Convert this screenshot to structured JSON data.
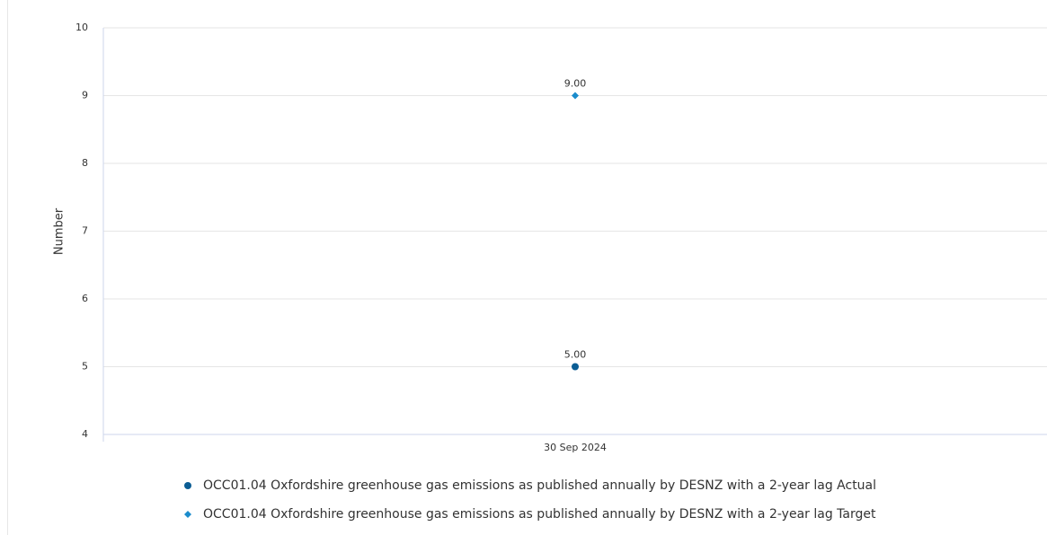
{
  "chart_data": {
    "type": "line",
    "y_label": "Number",
    "categories": [
      "30 Sep 2024"
    ],
    "series": [
      {
        "name": "OCC01.04 Oxfordshire greenhouse gas emissions as published annually by DESNZ with a 2-year lag Actual",
        "color": "#0b5d94",
        "marker": "circle",
        "values": [
          5
        ],
        "value_labels": [
          "5.00"
        ]
      },
      {
        "name": "OCC01.04 Oxfordshire greenhouse gas emissions as published annually by DESNZ with a 2-year lag Target",
        "color": "#1b8ccc",
        "marker": "diamond",
        "values": [
          9
        ],
        "value_labels": [
          "9.00"
        ]
      }
    ],
    "ylim": [
      4,
      10
    ],
    "yticks": [
      4,
      5,
      6,
      7,
      8,
      9,
      10
    ],
    "grid": true
  }
}
